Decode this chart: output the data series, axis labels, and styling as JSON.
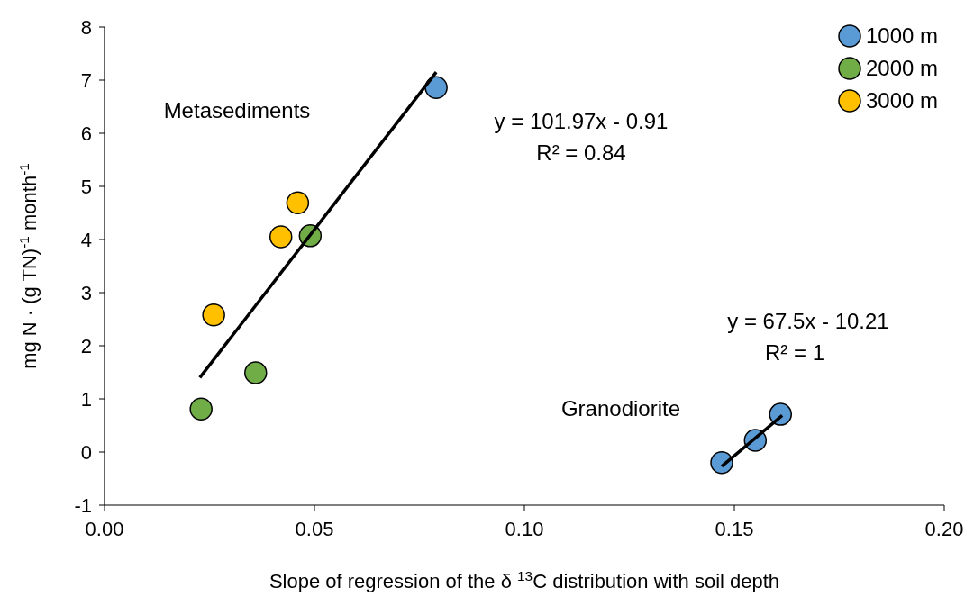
{
  "chart_data": {
    "type": "scatter",
    "xlabel": "Slope of regression of the δ $^{13}$C distribution with soil depth",
    "ylabel": "mg N · (g TN)$^{-1}$ month$^{-1}$",
    "xlim": [
      0,
      0.2
    ],
    "xticks": [
      {
        "value": 0,
        "label": "0.00"
      },
      {
        "value": 0.05,
        "label": "0.05"
      },
      {
        "value": 0.1,
        "label": "0.10"
      },
      {
        "value": 0.15,
        "label": "0.15"
      },
      {
        "value": 0.2,
        "label": "0.20"
      }
    ],
    "ylim": [
      -1,
      8
    ],
    "yticks": [
      -1,
      0,
      1,
      2,
      3,
      4,
      5,
      6,
      7,
      8
    ],
    "grid": false,
    "legend": "top right",
    "marker": "circle",
    "series": [
      {
        "name": "1000 m",
        "color": "#5b9bd5",
        "x": [
          0.079,
          0.147,
          0.155,
          0.161
        ],
        "values": [
          6.86,
          -0.2,
          0.22,
          0.71
        ]
      },
      {
        "name": "2000 m",
        "color": "#70ad47",
        "x": [
          0.049,
          0.036,
          0.023
        ],
        "values": [
          4.07,
          1.49,
          0.81
        ]
      },
      {
        "name": "3000 m",
        "color": "#ffc000",
        "x": [
          0.046,
          0.042,
          0.026
        ],
        "values": [
          4.69,
          4.05,
          2.58
        ]
      },
      {
        "type": "line",
        "color": "#000000",
        "marker": "none",
        "x": [
          0.0227,
          0.079
        ],
        "values": [
          1.4,
          7.15
        ]
      },
      {
        "type": "line",
        "color": "#000000",
        "marker": "none",
        "x": [
          0.147,
          0.1614
        ],
        "values": [
          -0.27,
          0.69
        ]
      }
    ],
    "annotations": [
      "Metasediments",
      "y = 101.97x - 0.91",
      "R² = 0.84",
      "y = 67.5x - 10.21",
      "R² = 1",
      "Granodiorite"
    ]
  }
}
